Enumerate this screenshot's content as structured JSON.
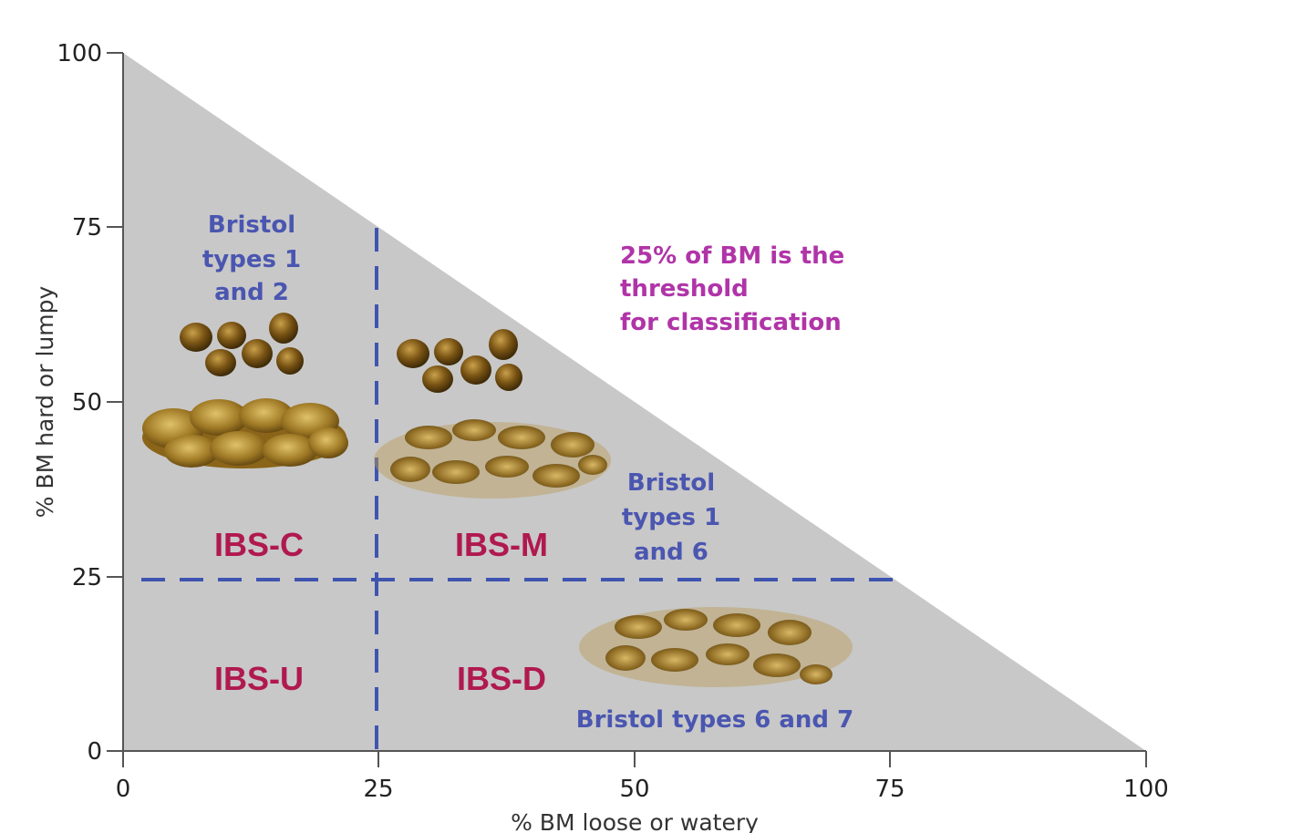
{
  "x_axis": {
    "title": "% BM loose or watery",
    "ticks": [
      "0",
      "25",
      "50",
      "75",
      "100"
    ]
  },
  "y_axis": {
    "title": "% BM hard or lumpy",
    "ticks": [
      "0",
      "25",
      "50",
      "75",
      "100"
    ]
  },
  "threshold": 25,
  "regions": {
    "ibs_c": "IBS-C",
    "ibs_m": "IBS-M",
    "ibs_u": "IBS-U",
    "ibs_d": "IBS-D"
  },
  "bristol_c": [
    "Bristol",
    "types 1",
    "and 2"
  ],
  "bristol_m": [
    "Bristol",
    "types 1",
    "and 6"
  ],
  "bristol_d": "Bristol types 6 and 7",
  "note": [
    "25% of BM is the",
    "threshold",
    "for classification"
  ],
  "colors": {
    "triangle_fill": "#c8c8c8",
    "dashed_line": "#3f54b0",
    "region_label": "#b0194f",
    "bristol_label": "#4a56b0",
    "note_label": "#b034a8",
    "stool_hard": "#6b4a10",
    "stool_soft": "#a78230"
  }
}
